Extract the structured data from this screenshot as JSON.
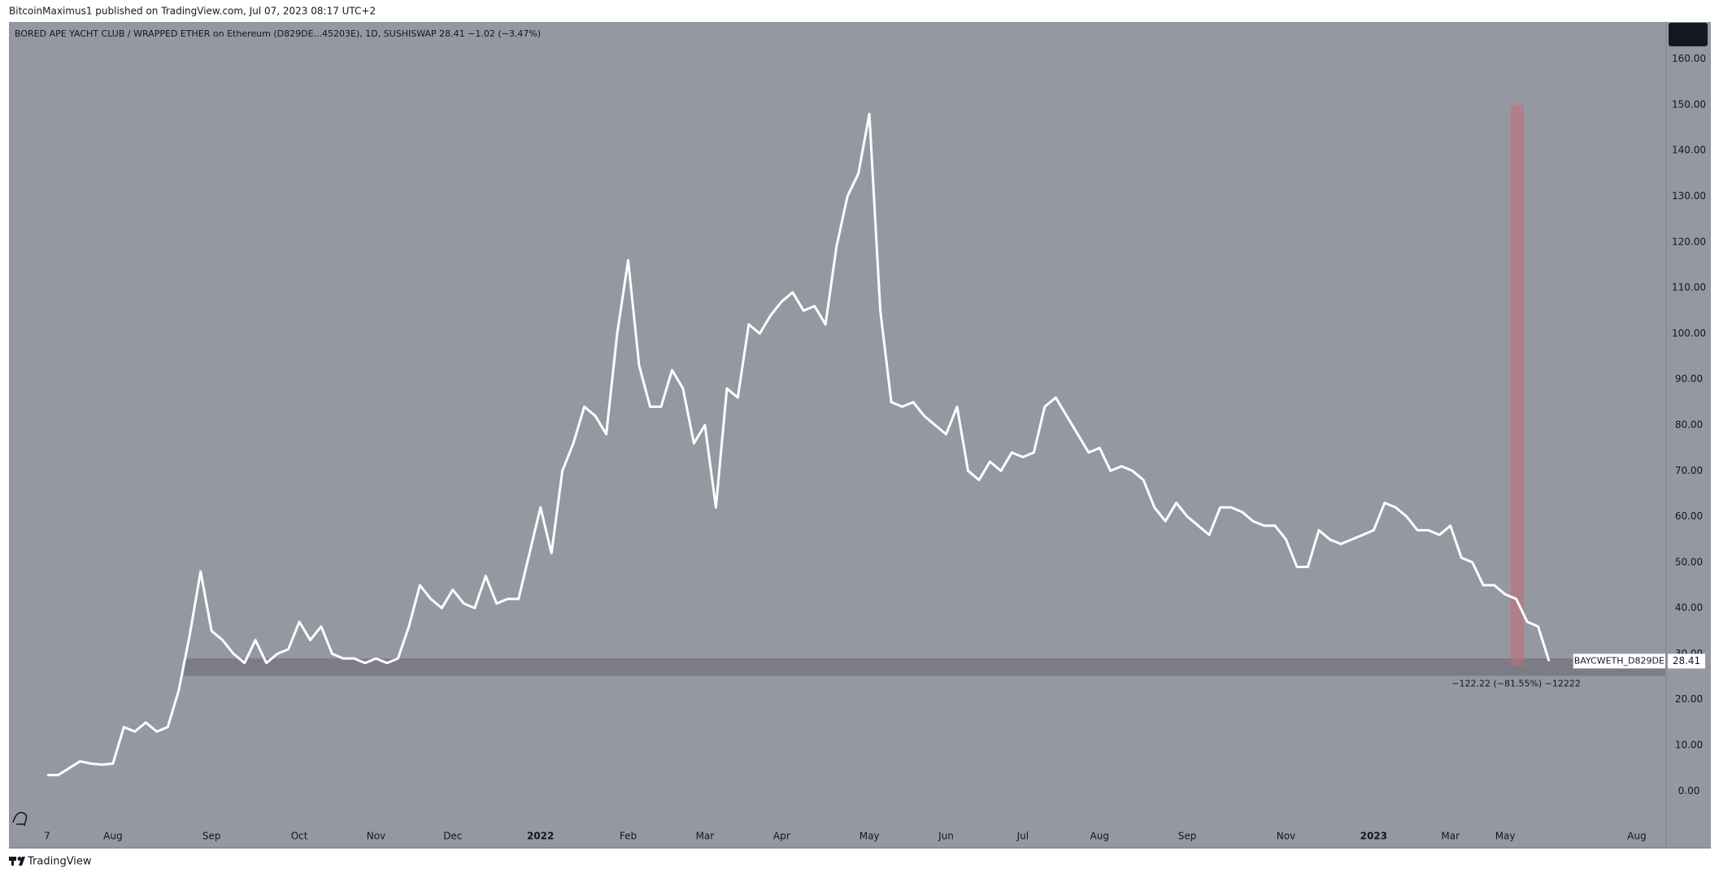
{
  "header": {
    "publisher": "BitcoinMaximus1 published on TradingView.com, Jul 07, 2023 08:17 UTC+2"
  },
  "chart_data": {
    "type": "line",
    "legend_text": "BORED APE YACHT CLUB / WRAPPED ETHER on Ethereum (D829DE...45203E), 1D, SUSHISWAP  28.41  −1.02 (−3.47%)",
    "categories": [
      null,
      null,
      null,
      "7",
      null,
      null,
      null,
      null,
      null,
      "Aug",
      null,
      null,
      null,
      null,
      null,
      null,
      null,
      null,
      "Sep",
      null,
      null,
      null,
      null,
      null,
      null,
      null,
      "Oct",
      null,
      null,
      null,
      null,
      null,
      null,
      "Nov",
      null,
      null,
      null,
      null,
      null,
      null,
      "Dec",
      null,
      null,
      null,
      null,
      null,
      null,
      null,
      "2022",
      null,
      null,
      null,
      null,
      null,
      null,
      null,
      "Feb",
      null,
      null,
      null,
      null,
      null,
      null,
      "Mar",
      null,
      null,
      null,
      null,
      null,
      null,
      "Apr",
      null,
      null,
      null,
      null,
      null,
      null,
      null,
      "May",
      null,
      null,
      null,
      null,
      null,
      null,
      "Jun",
      null,
      null,
      null,
      null,
      null,
      null,
      "Jul",
      null,
      null,
      null,
      null,
      null,
      null,
      "Aug",
      null,
      null,
      null,
      null,
      null,
      null,
      null,
      "Sep",
      null,
      null,
      null,
      null,
      null,
      null,
      null,
      null,
      "Nov",
      null,
      null,
      null,
      null,
      null,
      null,
      null,
      "2023",
      null,
      null,
      null,
      null,
      null,
      null,
      "Mar",
      null,
      null,
      null,
      null,
      "May",
      null,
      null,
      null,
      null,
      null,
      null,
      null,
      null,
      null,
      null,
      null,
      "Aug",
      null,
      null
    ],
    "series": [
      {
        "name": "BAYCWETH_D829DE",
        "color": "#ffffff",
        "values": [
          null,
          null,
          null,
          3.5,
          3.5,
          5,
          6.5,
          6,
          5.8,
          6,
          14,
          13,
          15,
          13,
          14,
          22,
          34,
          48,
          35,
          33,
          30,
          28,
          33,
          28,
          30,
          31,
          37,
          33,
          36,
          30,
          29,
          29,
          28,
          29,
          28,
          29,
          36,
          45,
          42,
          40,
          44,
          41,
          40,
          47,
          41,
          42,
          42,
          52,
          62,
          52,
          70,
          76,
          84,
          82,
          78,
          100,
          116,
          93,
          84,
          84,
          92,
          88,
          76,
          80,
          62,
          88,
          86,
          102,
          100,
          104,
          107,
          109,
          105,
          106,
          102,
          119,
          130,
          135,
          148,
          105,
          85,
          84,
          85,
          82,
          80,
          78,
          84,
          70,
          68,
          72,
          70,
          74,
          73,
          74,
          84,
          86,
          82,
          78,
          74,
          75,
          70,
          71,
          70,
          68,
          62,
          59,
          63,
          60,
          58,
          56,
          62,
          62,
          61,
          59,
          58,
          58,
          55,
          49,
          49,
          57,
          55,
          54,
          55,
          56,
          57,
          63,
          62,
          60,
          57,
          57,
          56,
          58,
          51,
          50,
          45,
          45,
          43,
          42,
          37,
          36,
          28.41,
          null,
          null,
          null,
          null,
          null,
          null,
          null,
          null,
          null,
          null
        ]
      }
    ],
    "ylim": [
      -12.2,
      168.1
    ],
    "yticks": [
      {
        "value": 0,
        "label": "0.00"
      },
      {
        "value": 10,
        "label": "10.00"
      },
      {
        "value": 20,
        "label": "20.00"
      },
      {
        "value": 30,
        "label": "30.00"
      },
      {
        "value": 40,
        "label": "40.00"
      },
      {
        "value": 50,
        "label": "50.00"
      },
      {
        "value": 60,
        "label": "60.00"
      },
      {
        "value": 70,
        "label": "70.00"
      },
      {
        "value": 80,
        "label": "80.00"
      },
      {
        "value": 90,
        "label": "90.00"
      },
      {
        "value": 100,
        "label": "100.00"
      },
      {
        "value": 110,
        "label": "110.00"
      },
      {
        "value": 120,
        "label": "120.00"
      },
      {
        "value": 130,
        "label": "130.00"
      },
      {
        "value": 140,
        "label": "140.00"
      },
      {
        "value": 150,
        "label": "150.00"
      },
      {
        "value": 160,
        "label": "160.00"
      }
    ],
    "support_zone": [
      25.2,
      29
    ],
    "measure": {
      "range": [
        27.3,
        150
      ],
      "label": "−122.22 (−81.55%) −12222"
    }
  },
  "footer": {
    "brand": "TradingView"
  }
}
